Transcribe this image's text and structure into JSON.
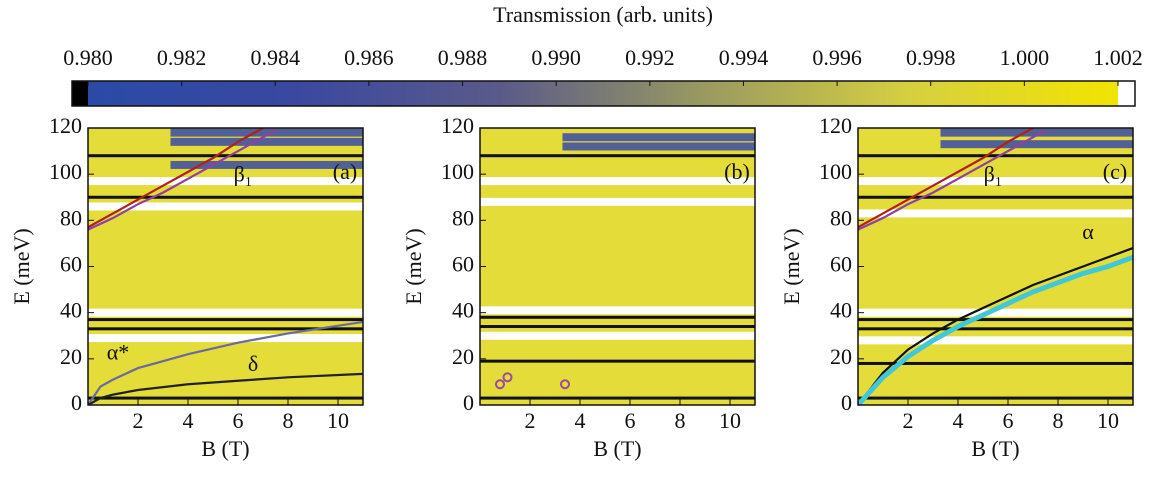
{
  "colorbar": {
    "title": "Transmission (arb. units)",
    "clim": [
      0.98,
      1.002
    ],
    "colors": [
      "#2a4aa6",
      "#3a48a0",
      "#5a5a8a",
      "#9a9a60",
      "#d6d040",
      "#f2e400"
    ],
    "ticks": [
      {
        "value": 0.98,
        "label": "0.980"
      },
      {
        "value": 0.982,
        "label": "0.982"
      },
      {
        "value": 0.984,
        "label": "0.984"
      },
      {
        "value": 0.986,
        "label": "0.986"
      },
      {
        "value": 0.988,
        "label": "0.988"
      },
      {
        "value": 0.99,
        "label": "0.990"
      },
      {
        "value": 0.992,
        "label": "0.992"
      },
      {
        "value": 0.994,
        "label": "0.994"
      },
      {
        "value": 0.996,
        "label": "0.996"
      },
      {
        "value": 0.998,
        "label": "0.998"
      },
      {
        "value": 1.0,
        "label": "1.000"
      },
      {
        "value": 1.002,
        "label": "1.002"
      }
    ]
  },
  "chart_data": [
    {
      "type": "heatmap",
      "label": "(a)",
      "xlabel": "B (T)",
      "ylabel": "E (meV)",
      "xlim": [
        0,
        11
      ],
      "ylim": [
        0,
        120
      ],
      "xticks": [
        2,
        4,
        6,
        8,
        10
      ],
      "yticks": [
        0,
        20,
        40,
        60,
        80,
        100,
        120
      ],
      "dark_rows": [
        108,
        90,
        37,
        33,
        3
      ],
      "white_rows": [
        97,
        86,
        40,
        29
      ],
      "blue_rows": [
        118,
        114,
        104
      ],
      "series": [
        {
          "color": "#b02020",
          "x": [
            0,
            1,
            2,
            3,
            4,
            5,
            6,
            7
          ],
          "values": [
            77,
            83,
            89,
            95,
            101,
            107,
            114,
            120
          ]
        },
        {
          "color": "#9040a0",
          "x": [
            0,
            1,
            2,
            3,
            4,
            5,
            6,
            7,
            7.5
          ],
          "values": [
            76,
            81,
            87,
            92,
            98,
            104,
            110,
            116,
            119
          ]
        },
        {
          "color": "#6a6aa0",
          "x": [
            0,
            0.5,
            1,
            2,
            3,
            4,
            6,
            8,
            11
          ],
          "values": [
            0,
            8,
            11,
            16,
            19,
            22,
            27,
            31,
            36
          ]
        },
        {
          "color": "#222222",
          "x": [
            0,
            0.5,
            1,
            2,
            4,
            6,
            8,
            11
          ],
          "values": [
            0,
            3,
            4.5,
            6.5,
            9,
            10.5,
            12,
            13.5
          ]
        }
      ],
      "annotations": [
        {
          "text": "β₁",
          "x": 6.2,
          "y": 99,
          "color": "#a02020"
        },
        {
          "text": "α*",
          "x": 1.2,
          "y": 22,
          "color": "#4a4aa0"
        },
        {
          "text": "δ",
          "x": 6.6,
          "y": 17,
          "color": "#111111"
        }
      ]
    },
    {
      "type": "heatmap",
      "label": "(b)",
      "xlabel": "B (T)",
      "ylabel": "E (meV)",
      "xlim": [
        0,
        11
      ],
      "ylim": [
        0,
        120
      ],
      "xticks": [
        2,
        4,
        6,
        8,
        10
      ],
      "yticks": [
        0,
        20,
        40,
        60,
        80,
        100,
        120
      ],
      "dark_rows": [
        108,
        38,
        34,
        19,
        3
      ],
      "white_rows": [
        97,
        88,
        41,
        30
      ],
      "blue_rows": [
        116,
        112
      ],
      "series": [
        {
          "color": "#9a4aa0",
          "marker": "circle",
          "x": [
            0.8,
            1.1,
            3.4
          ],
          "values": [
            9,
            12,
            9
          ]
        }
      ],
      "annotations": []
    },
    {
      "type": "heatmap",
      "label": "(c)",
      "xlabel": "B (T)",
      "ylabel": "E (meV)",
      "xlim": [
        0,
        11
      ],
      "ylim": [
        0,
        120
      ],
      "xticks": [
        2,
        4,
        6,
        8,
        10
      ],
      "yticks": [
        0,
        20,
        40,
        60,
        80,
        100,
        120
      ],
      "dark_rows": [
        108,
        90,
        37,
        33,
        18,
        3
      ],
      "white_rows": [
        97,
        83,
        40,
        28
      ],
      "blue_rows": [
        118,
        113
      ],
      "series": [
        {
          "color": "#b02020",
          "x": [
            0,
            1,
            2,
            3,
            4,
            5,
            6,
            7
          ],
          "values": [
            77,
            83,
            89,
            95,
            101,
            107,
            114,
            120
          ]
        },
        {
          "color": "#9040a0",
          "x": [
            0,
            1,
            2,
            3,
            4,
            5,
            6,
            7,
            7.5
          ],
          "values": [
            76,
            81,
            87,
            92,
            98,
            104,
            110,
            116,
            119
          ]
        },
        {
          "color": "#111111",
          "x": [
            0,
            1,
            2,
            3,
            4,
            5,
            6,
            7,
            8,
            9,
            10,
            11
          ],
          "values": [
            0,
            14,
            24,
            31,
            37,
            42,
            47,
            52,
            56,
            60,
            64,
            68
          ]
        },
        {
          "color": "#40c8d8",
          "x": [
            0,
            1,
            2,
            3,
            4,
            5,
            6,
            7,
            8,
            9,
            10,
            11
          ],
          "values": [
            0,
            12,
            21,
            28,
            34,
            39,
            44,
            49,
            53,
            57,
            60,
            64
          ]
        }
      ],
      "annotations": [
        {
          "text": "β₁",
          "x": 5.4,
          "y": 99,
          "color": "#a02020"
        },
        {
          "text": "α",
          "x": 9.2,
          "y": 74,
          "color": "#20b0c8"
        }
      ]
    }
  ]
}
